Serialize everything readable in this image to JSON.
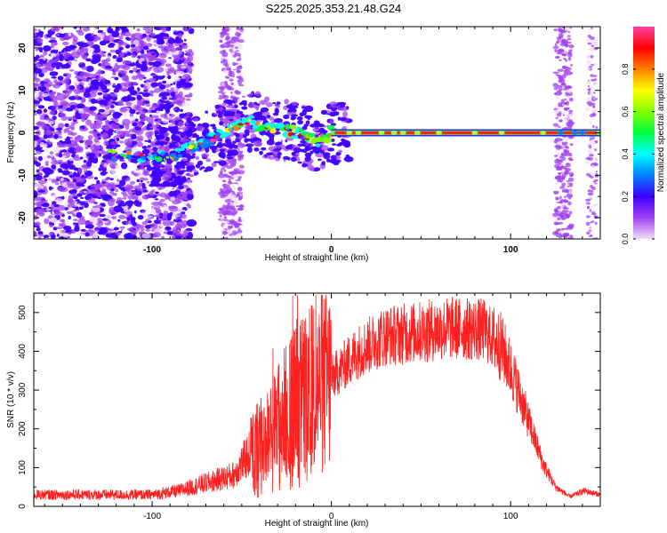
{
  "title": "S225.2025.353.21.48.G24",
  "chart_data": [
    {
      "type": "heatmap",
      "xlabel": "Height of straight line (km)",
      "ylabel": "Frequency (Hz)",
      "xlim": [
        -166,
        150
      ],
      "ylim": [
        -25,
        25
      ],
      "xticks": [
        -100,
        0,
        100
      ],
      "xtick_labels": [
        "-100",
        "0",
        "100"
      ],
      "yticks": [
        20,
        10,
        0,
        -10,
        -20
      ],
      "ytick_labels": [
        "20",
        "10",
        "0",
        "-10",
        "-20"
      ],
      "colorbar": {
        "label": "Normalized spectral amplitude",
        "range": [
          0,
          1
        ],
        "ticks": [
          0.0,
          0.2,
          0.4,
          0.6,
          0.8
        ],
        "tick_labels": [
          "0.0",
          "0.2",
          "0.4",
          "0.6",
          "0.8"
        ],
        "colors": [
          "#f2dcfa",
          "#a040f0",
          "#4000ff",
          "#0080ff",
          "#00ffff",
          "#00ff40",
          "#80ff00",
          "#ffff00",
          "#ff8000",
          "#ff0000",
          "#ff40a0"
        ]
      },
      "ridge": [
        {
          "x": -120,
          "y": -5
        },
        {
          "x": -90,
          "y": -6
        },
        {
          "x": -75,
          "y": -3
        },
        {
          "x": -60,
          "y": 0
        },
        {
          "x": -45,
          "y": 3
        },
        {
          "x": -35,
          "y": 1
        },
        {
          "x": -20,
          "y": 0
        },
        {
          "x": -8,
          "y": -2
        },
        {
          "x": 0,
          "y": 0
        },
        {
          "x": 150,
          "y": 0
        }
      ]
    },
    {
      "type": "line",
      "xlabel": "Height of straight line (km)",
      "ylabel": "SNR (10 * v/v)",
      "xlim": [
        -166,
        150
      ],
      "ylim": [
        0,
        550
      ],
      "xticks": [
        -100,
        0,
        100
      ],
      "xtick_labels": [
        "-100",
        "0",
        "100"
      ],
      "yticks": [
        0,
        100,
        200,
        300,
        400,
        500
      ],
      "ytick_labels": [
        "0",
        "100",
        "200",
        "300",
        "400",
        "500"
      ],
      "color": "#ff2020",
      "envelope": [
        {
          "x": -166,
          "y": 30
        },
        {
          "x": -100,
          "y": 30
        },
        {
          "x": -85,
          "y": 40
        },
        {
          "x": -70,
          "y": 60
        },
        {
          "x": -55,
          "y": 80
        },
        {
          "x": -45,
          "y": 140
        },
        {
          "x": -35,
          "y": 180
        },
        {
          "x": -25,
          "y": 250
        },
        {
          "x": -15,
          "y": 290
        },
        {
          "x": 0,
          "y": 330
        },
        {
          "x": 15,
          "y": 400
        },
        {
          "x": 30,
          "y": 440
        },
        {
          "x": 50,
          "y": 450
        },
        {
          "x": 65,
          "y": 460
        },
        {
          "x": 85,
          "y": 455
        },
        {
          "x": 95,
          "y": 410
        },
        {
          "x": 102,
          "y": 330
        },
        {
          "x": 110,
          "y": 220
        },
        {
          "x": 118,
          "y": 110
        },
        {
          "x": 125,
          "y": 50
        },
        {
          "x": 133,
          "y": 25
        },
        {
          "x": 141,
          "y": 40
        },
        {
          "x": 150,
          "y": 30
        }
      ]
    }
  ]
}
